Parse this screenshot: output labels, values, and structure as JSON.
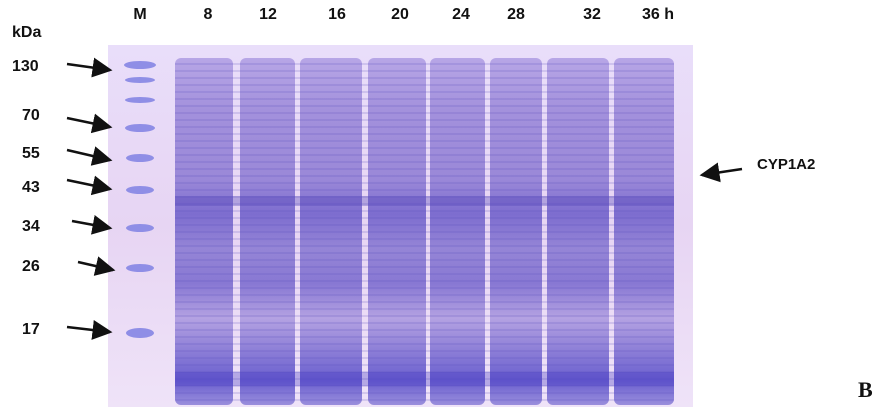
{
  "figure": {
    "unit_label": "kDa",
    "lanes": [
      "M",
      "8",
      "12",
      "16",
      "20",
      "24",
      "28",
      "32",
      "36 h"
    ],
    "markers": [
      "130",
      "70",
      "55",
      "43",
      "34",
      "26",
      "17"
    ],
    "annotation": "CYP1A2",
    "panel": "B"
  }
}
